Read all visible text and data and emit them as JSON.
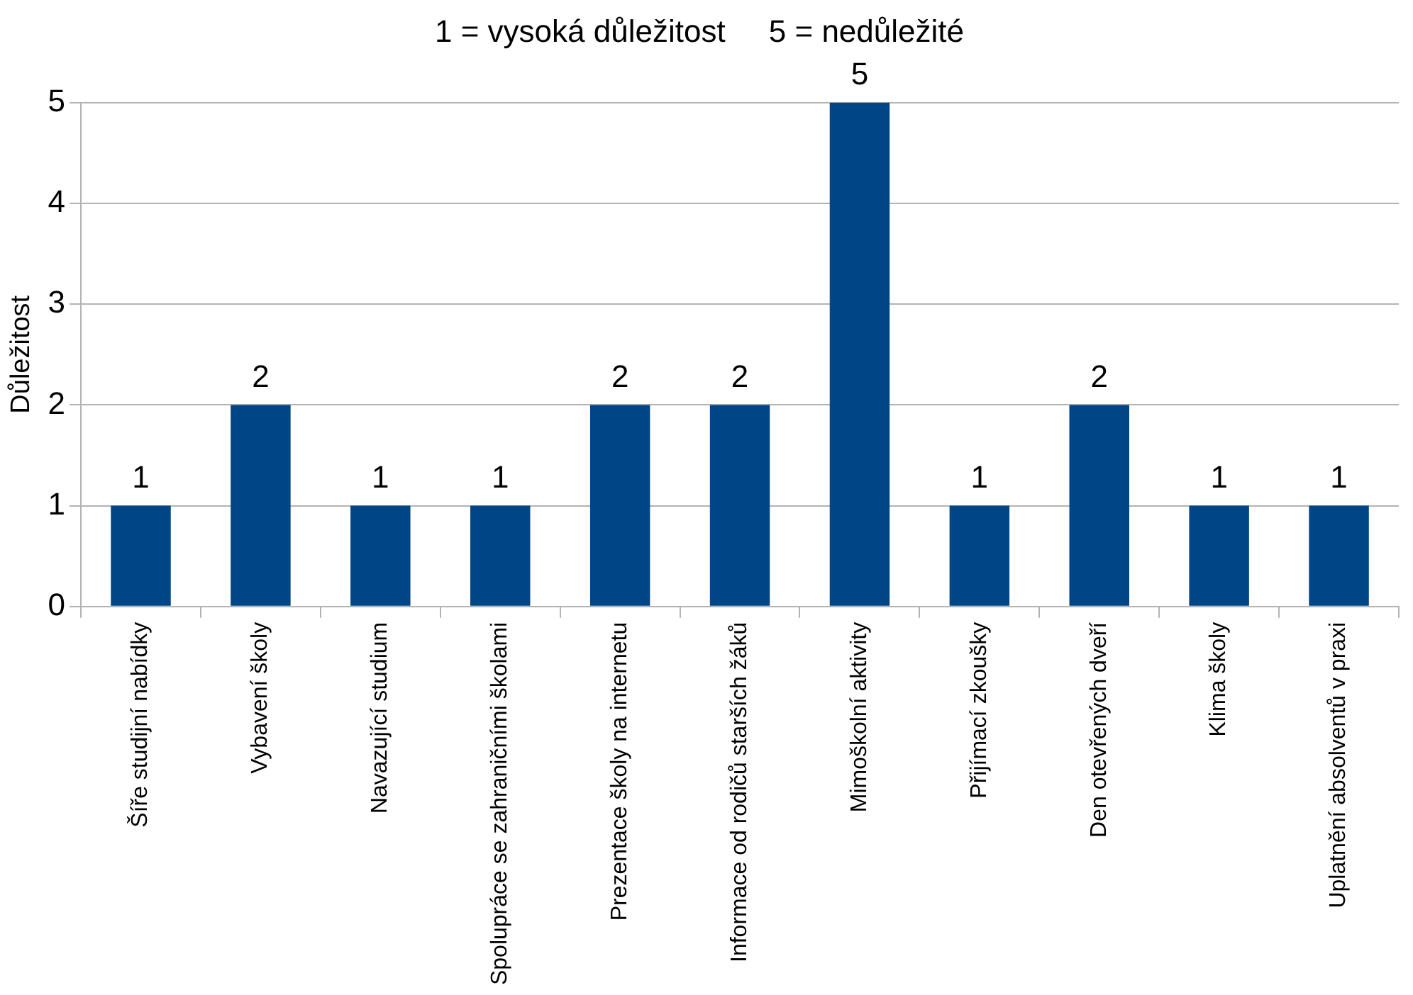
{
  "chart_data": {
    "type": "bar",
    "title": "1 = vysoká důležitost     5 = nedůležité",
    "ylabel": "Důležitost",
    "categories": [
      "Šíře studijní nabídky",
      "Vybavení školy",
      "Navazující studium",
      "Spolupráce se zahraničními školami",
      "Prezentace školy na internetu",
      "Informace od rodičů starších žáků",
      "Mimoškolní aktivity",
      "Přijímací zkoušky",
      "Den otevřených dveří",
      "Klima školy",
      "Uplatnění absolventů v praxi"
    ],
    "values": [
      1,
      2,
      1,
      1,
      2,
      2,
      5,
      1,
      2,
      1,
      1
    ],
    "color": "#004586",
    "ylim": [
      0,
      5
    ],
    "yticks": [
      0,
      1,
      2,
      3,
      4,
      5
    ],
    "grid": "y",
    "data_labels": true,
    "legend": false
  }
}
